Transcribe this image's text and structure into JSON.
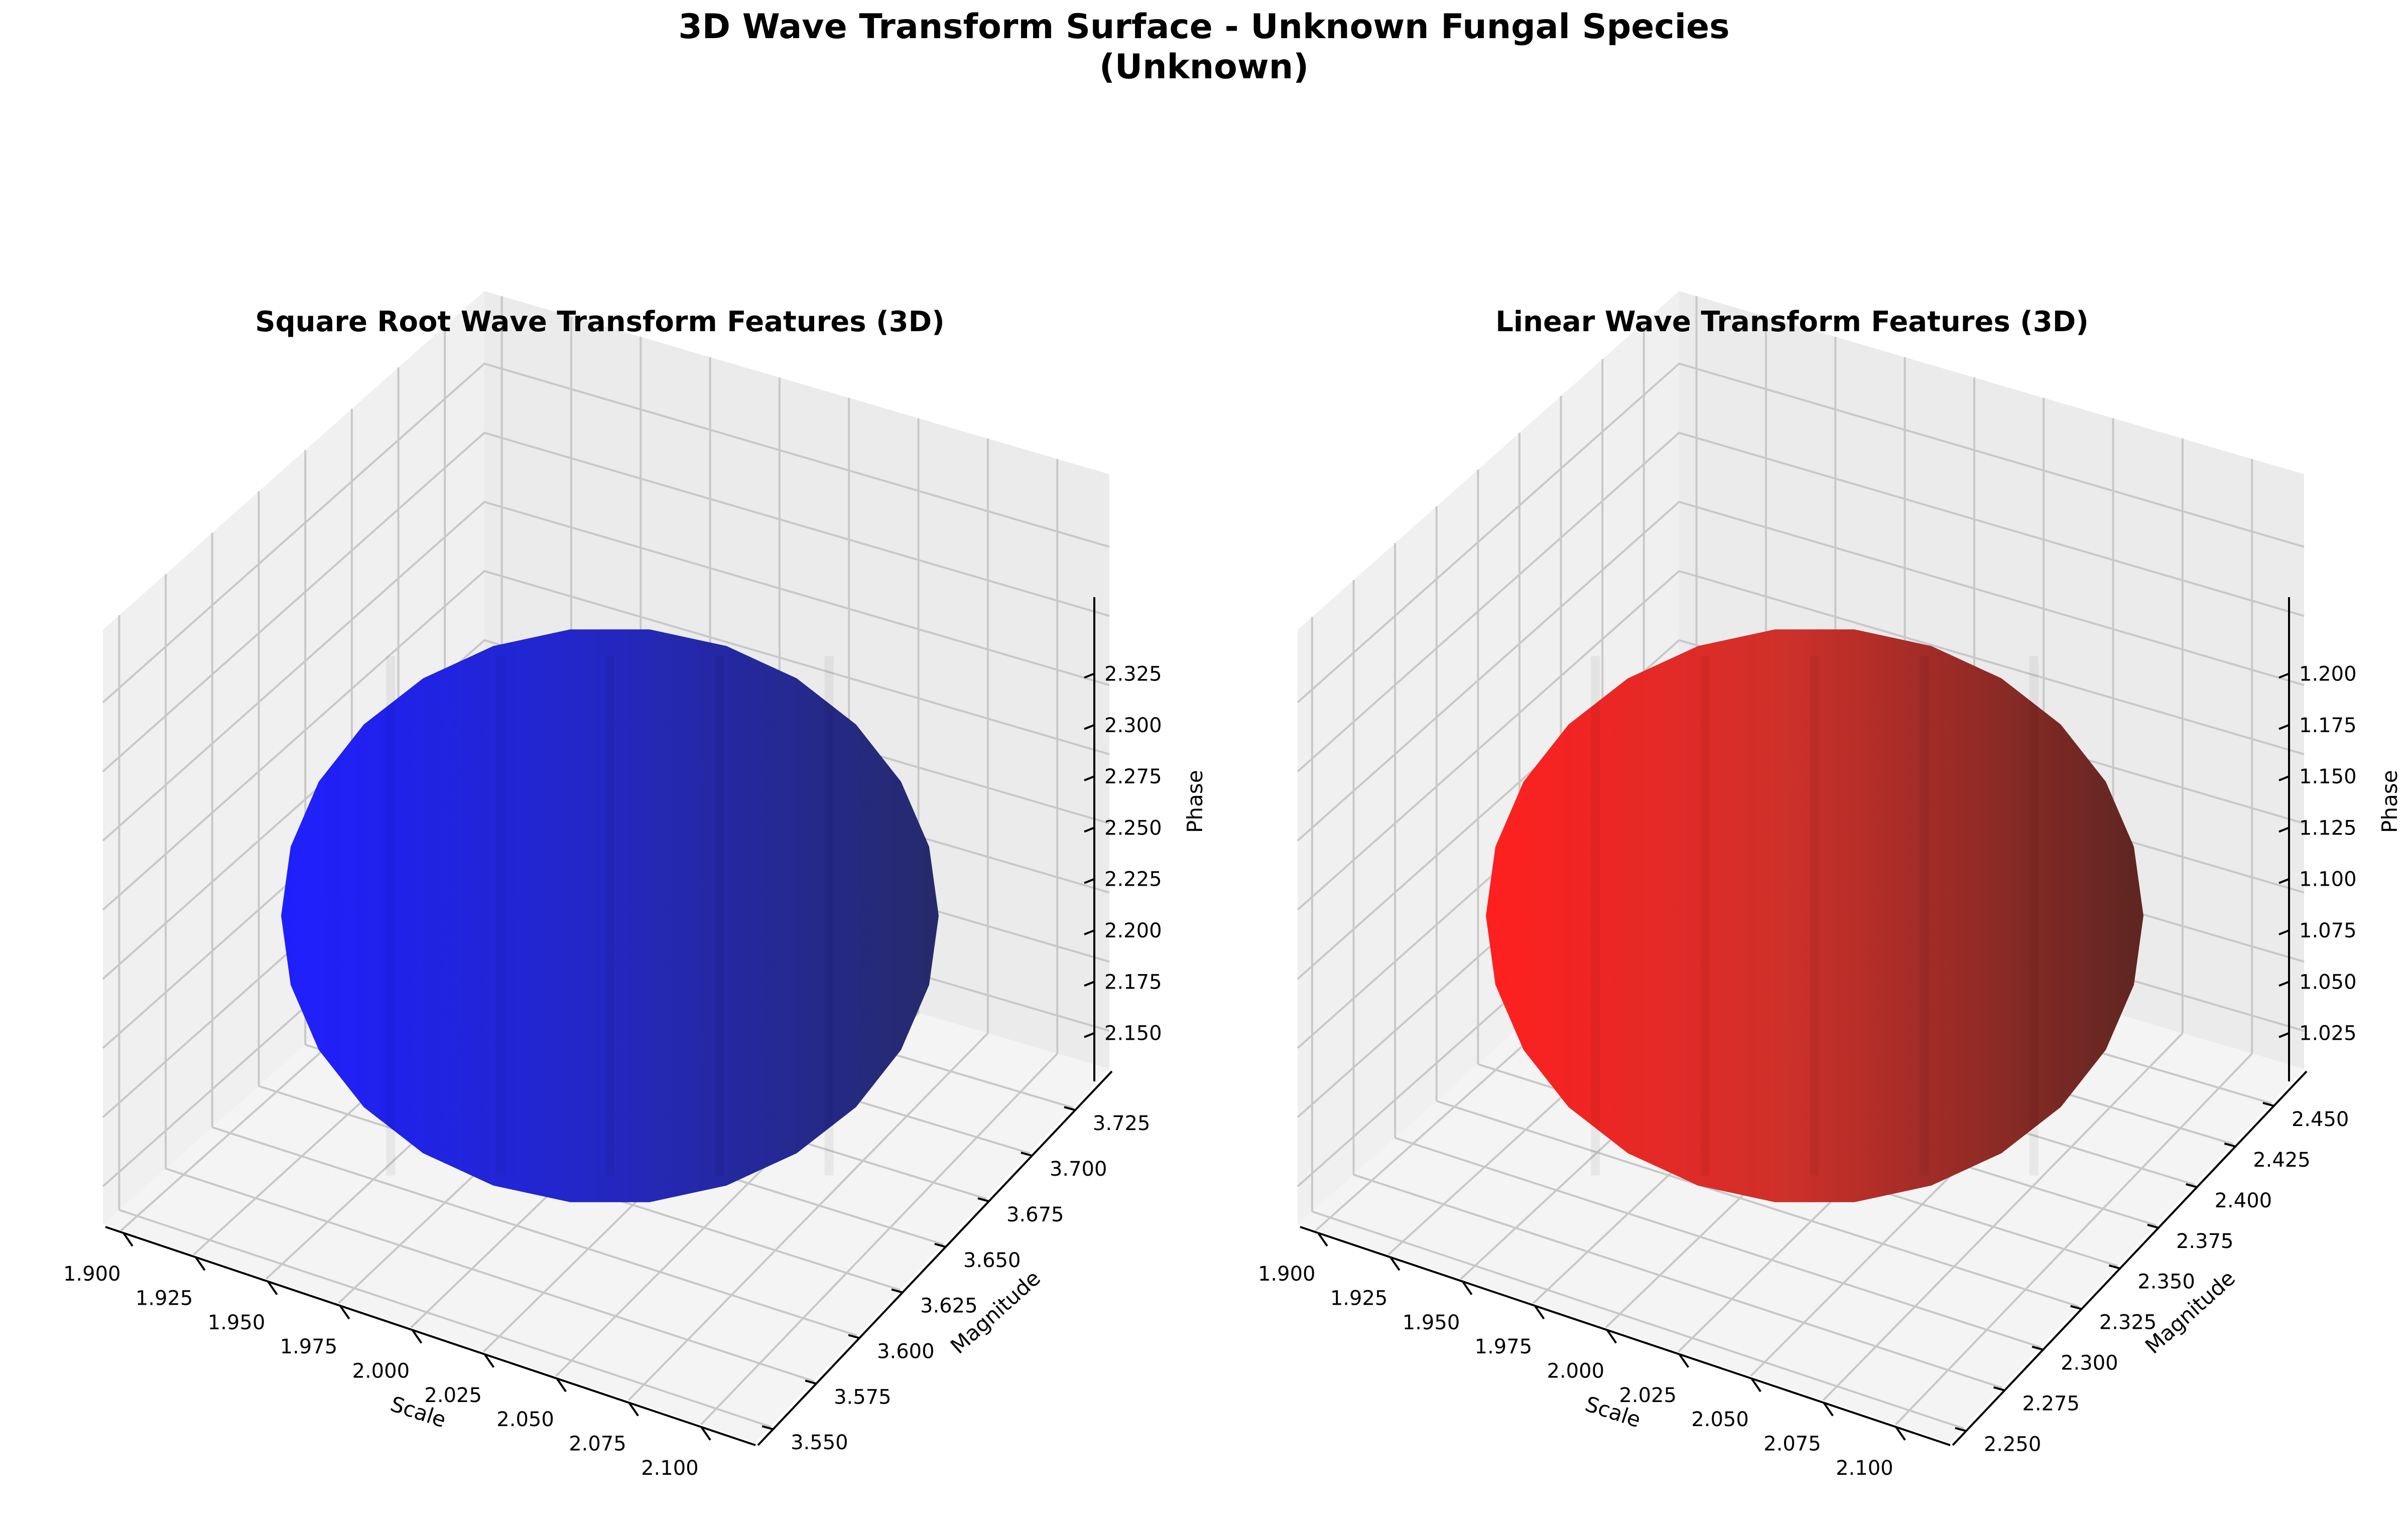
{
  "figure": {
    "title_line1": "3D Wave Transform Surface - Unknown Fungal Species",
    "title_line2": "(Unknown)"
  },
  "chart_data": [
    {
      "type": "surface3d",
      "title": "Square Root Wave Transform Features (3D)",
      "xlabel": "Scale",
      "ylabel": "Magnitude",
      "zlabel": "Phase",
      "surface": "sphere",
      "color": "#1f1fff",
      "center": {
        "x": 2.0,
        "y": 3.64,
        "z": 2.24
      },
      "xlim": [
        1.9,
        2.1
      ],
      "ylim": [
        3.54,
        3.74
      ],
      "zlim": [
        2.14,
        2.34
      ],
      "xticks": [
        "1.900",
        "1.925",
        "1.950",
        "1.975",
        "2.000",
        "2.025",
        "2.050",
        "2.075",
        "2.100"
      ],
      "yticks": [
        "3.550",
        "3.575",
        "3.600",
        "3.625",
        "3.650",
        "3.675",
        "3.700",
        "3.725"
      ],
      "zticks": [
        "2.150",
        "2.175",
        "2.200",
        "2.225",
        "2.250",
        "2.275",
        "2.300",
        "2.325"
      ]
    },
    {
      "type": "surface3d",
      "title": "Linear Wave Transform Features (3D)",
      "xlabel": "Scale",
      "ylabel": "Magnitude",
      "zlabel": "Phase",
      "surface": "sphere",
      "color": "#ff2020",
      "center": {
        "x": 2.0,
        "y": 2.35,
        "z": 1.115
      },
      "xlim": [
        1.9,
        2.1
      ],
      "ylim": [
        2.25,
        2.45
      ],
      "zlim": [
        1.015,
        1.215
      ],
      "xticks": [
        "1.900",
        "1.925",
        "1.950",
        "1.975",
        "2.000",
        "2.025",
        "2.050",
        "2.075",
        "2.100"
      ],
      "yticks": [
        "2.250",
        "2.275",
        "2.300",
        "2.325",
        "2.350",
        "2.375",
        "2.400",
        "2.425",
        "2.450"
      ],
      "zticks": [
        "1.025",
        "1.050",
        "1.075",
        "1.100",
        "1.125",
        "1.150",
        "1.175",
        "1.200"
      ]
    }
  ]
}
